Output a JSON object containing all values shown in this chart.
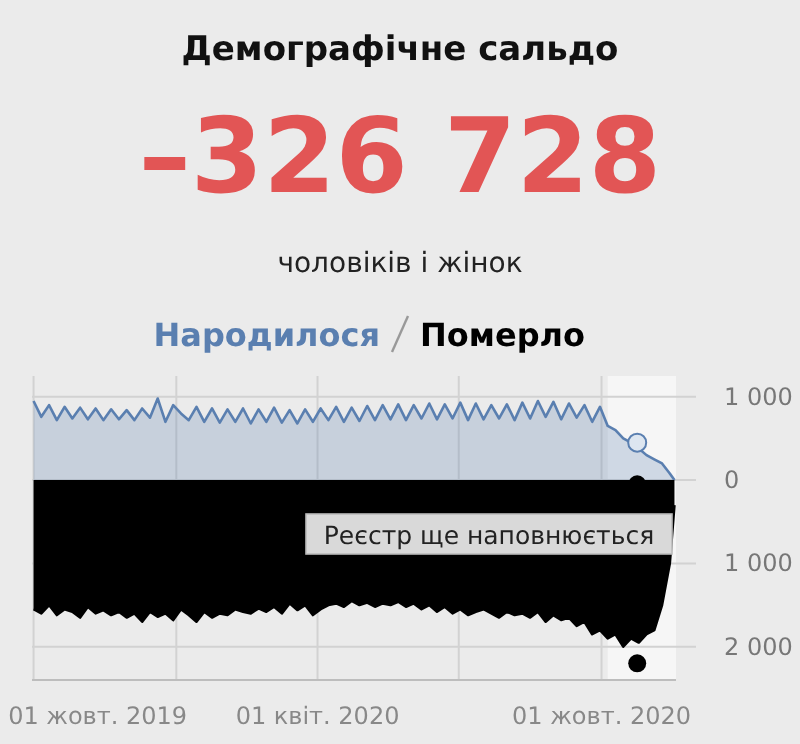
{
  "chart_data": {
    "type": "area",
    "title": "Демографічне сальдо",
    "annotations": [
      "–326 728",
      "чоловіків і жінок"
    ],
    "x": [
      "2019-10-01",
      "2019-10-06",
      "2019-10-11",
      "2019-10-16",
      "2019-10-21",
      "2019-10-26",
      "2019-10-31",
      "2019-11-05",
      "2019-11-10",
      "2019-11-15",
      "2019-11-20",
      "2019-11-25",
      "2019-11-30",
      "2019-12-05",
      "2019-12-10",
      "2019-12-15",
      "2019-12-20",
      "2019-12-25",
      "2019-12-30",
      "2020-01-04",
      "2020-01-09",
      "2020-01-14",
      "2020-01-19",
      "2020-01-24",
      "2020-01-29",
      "2020-02-03",
      "2020-02-08",
      "2020-02-13",
      "2020-02-18",
      "2020-02-23",
      "2020-02-28",
      "2020-03-04",
      "2020-03-09",
      "2020-03-14",
      "2020-03-19",
      "2020-03-24",
      "2020-03-29",
      "2020-04-03",
      "2020-04-08",
      "2020-04-13",
      "2020-04-18",
      "2020-04-23",
      "2020-04-28",
      "2020-05-03",
      "2020-05-08",
      "2020-05-13",
      "2020-05-18",
      "2020-05-23",
      "2020-05-28",
      "2020-06-02",
      "2020-06-07",
      "2020-06-12",
      "2020-06-17",
      "2020-06-22",
      "2020-06-27",
      "2020-07-02",
      "2020-07-07",
      "2020-07-12",
      "2020-07-17",
      "2020-07-22",
      "2020-07-27",
      "2020-08-01",
      "2020-08-06",
      "2020-08-11",
      "2020-08-16",
      "2020-08-21",
      "2020-08-26",
      "2020-08-31",
      "2020-09-05",
      "2020-09-10",
      "2020-09-15",
      "2020-09-20",
      "2020-09-25",
      "2020-09-30",
      "2020-10-05",
      "2020-10-10",
      "2020-10-15",
      "2020-10-20",
      "2020-10-25",
      "2020-10-30",
      "2020-11-04",
      "2020-11-09",
      "2020-11-14",
      "2020-11-17"
    ],
    "series": [
      {
        "name": "Народилося",
        "color": "#5a7fb0",
        "values": [
          950,
          760,
          900,
          720,
          880,
          740,
          870,
          730,
          860,
          720,
          850,
          730,
          840,
          720,
          860,
          750,
          980,
          700,
          900,
          800,
          720,
          880,
          700,
          860,
          690,
          850,
          700,
          860,
          680,
          850,
          700,
          870,
          690,
          840,
          680,
          850,
          700,
          860,
          720,
          880,
          700,
          870,
          710,
          890,
          720,
          900,
          730,
          910,
          720,
          900,
          740,
          920,
          730,
          910,
          740,
          930,
          720,
          920,
          730,
          900,
          740,
          910,
          720,
          930,
          740,
          950,
          760,
          940,
          730,
          920,
          750,
          900,
          700,
          880,
          650,
          600,
          500,
          450,
          380,
          300,
          250,
          200,
          80,
          0
        ]
      },
      {
        "name": "Померло",
        "color": "#000000",
        "values": [
          -1550,
          -1600,
          -1500,
          -1620,
          -1550,
          -1580,
          -1650,
          -1520,
          -1600,
          -1560,
          -1620,
          -1580,
          -1650,
          -1600,
          -1700,
          -1580,
          -1640,
          -1600,
          -1680,
          -1550,
          -1620,
          -1700,
          -1580,
          -1650,
          -1600,
          -1620,
          -1550,
          -1580,
          -1600,
          -1540,
          -1580,
          -1520,
          -1600,
          -1480,
          -1560,
          -1500,
          -1620,
          -1550,
          -1500,
          -1480,
          -1520,
          -1450,
          -1500,
          -1470,
          -1520,
          -1480,
          -1500,
          -1460,
          -1520,
          -1480,
          -1550,
          -1500,
          -1580,
          -1520,
          -1600,
          -1550,
          -1620,
          -1580,
          -1550,
          -1600,
          -1650,
          -1580,
          -1620,
          -1600,
          -1650,
          -1580,
          -1700,
          -1620,
          -1680,
          -1650,
          -1750,
          -1700,
          -1850,
          -1800,
          -1900,
          -1850,
          -2000,
          -1900,
          -1950,
          -1850,
          -1800,
          -1500,
          -1000,
          -300
        ]
      },
      {
        "type": "scatter",
        "marker": "circle",
        "color": "#dde6f0",
        "x": [
          "2020-10-24"
        ],
        "values": [
          450
        ]
      },
      {
        "type": "scatter",
        "marker": "circle",
        "color": "#000000",
        "x": [
          "2020-10-24",
          "2020-10-24"
        ],
        "values": [
          -50,
          -2200
        ]
      }
    ],
    "xlim": [
      "2019-09-30",
      "2020-11-18"
    ],
    "xticks": [
      {
        "value": "2019-10-01",
        "label": "01 жовт. 2019"
      },
      {
        "value": "2020-01-01",
        "label": null
      },
      {
        "value": "2020-04-01",
        "label": "01 квіт. 2020"
      },
      {
        "value": "2020-07-01",
        "label": null
      },
      {
        "value": "2020-10-01",
        "label": "01 жовт. 2020"
      }
    ],
    "ylim": [
      -2400,
      1250
    ],
    "yticks": [
      {
        "value": 1000,
        "label": "1 000"
      },
      0,
      {
        "value": -1000,
        "label": "1 000"
      },
      {
        "value": -2000,
        "label": "2 000"
      }
    ],
    "grid": true,
    "legend": "top",
    "bands": [
      {
        "axis": "x",
        "from": "2020-10-05",
        "to": "2020-11-18",
        "label": "Реєстр ще наповнюється",
        "color": "#f6f6f6"
      }
    ]
  }
}
